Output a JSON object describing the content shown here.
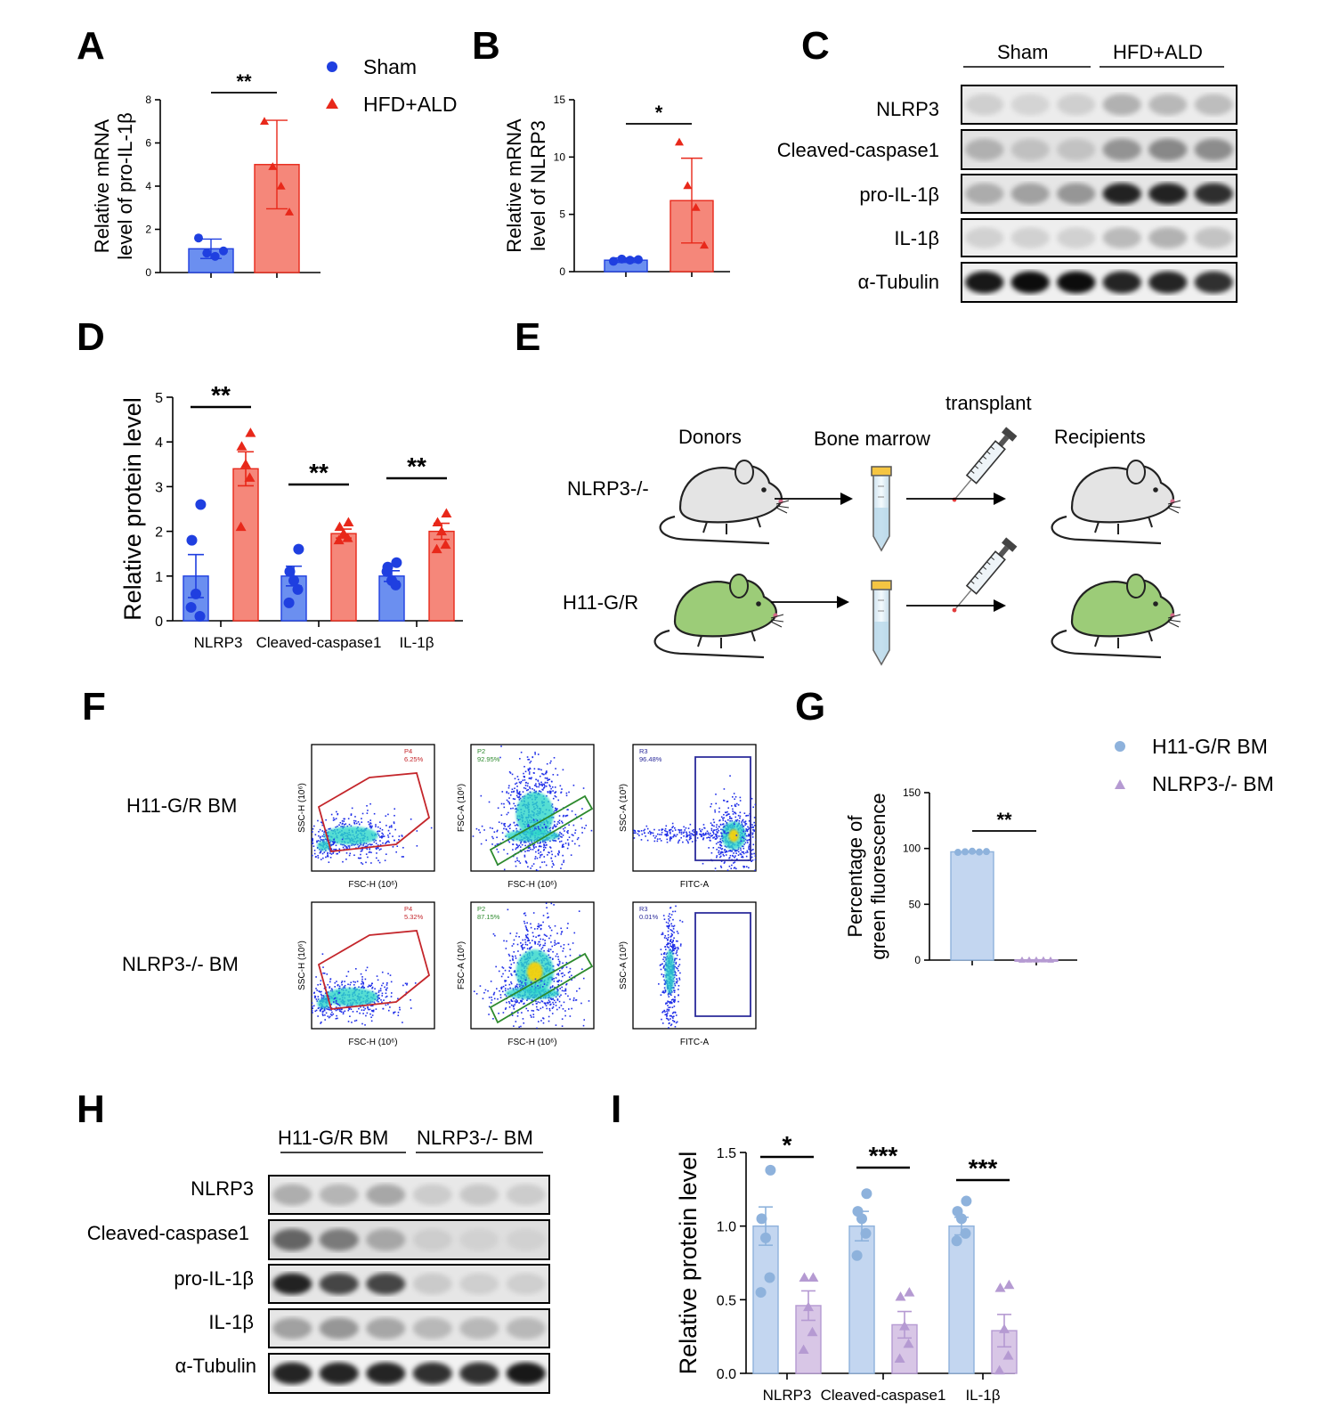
{
  "panels": {
    "A": "A",
    "B": "B",
    "C": "C",
    "D": "D",
    "E": "E",
    "F": "F",
    "G": "G",
    "H": "H",
    "I": "I"
  },
  "colors": {
    "sham_fill": "#6b8ff0",
    "sham_dot": "#1f3fe0",
    "hfd_fill": "#f5877a",
    "hfd_dot": "#e8281a",
    "h11_fill": "#c3d6f0",
    "h11_dot": "#8eb2dc",
    "nlrp_fill": "#d8c6e6",
    "nlrp_dot": "#b59ad2",
    "mouse_gray": "#e4e4e4",
    "mouse_green": "#9ccc78"
  },
  "legend_top": {
    "sham": "Sham",
    "hfd": "HFD+ALD"
  },
  "legend_g": {
    "h11": "H11-G/R BM",
    "nlrp": "NLRP3-/- BM"
  },
  "chart_data": [
    {
      "panel": "A",
      "type": "bar",
      "categories": [
        "Sham",
        "HFD+ALD"
      ],
      "ylabel_line1": "Relative mRNA",
      "ylabel_line2": "level of pro-IL-1β",
      "ylim": [
        0,
        8
      ],
      "yticks": [
        "0",
        "2",
        "4",
        "6",
        "8"
      ],
      "values": [
        1.1,
        5.0
      ],
      "errors": [
        0.45,
        2.05
      ],
      "points": [
        [
          1.6,
          0.9,
          0.75,
          1.0
        ],
        [
          7.0,
          4.9,
          4.0,
          2.8
        ]
      ],
      "significance": "**"
    },
    {
      "panel": "B",
      "type": "bar",
      "categories": [
        "Sham",
        "HFD+ALD"
      ],
      "ylabel_line1": "Relative mRNA",
      "ylabel_line2": "level of NLRP3",
      "ylim": [
        0,
        15
      ],
      "yticks": [
        "0",
        "5",
        "10",
        "15"
      ],
      "values": [
        1.0,
        6.2
      ],
      "errors": [
        0.2,
        3.7
      ],
      "points": [
        [
          0.9,
          1.1,
          1.0,
          1.05
        ],
        [
          11.3,
          7.5,
          5.6,
          2.3
        ]
      ],
      "significance": "*"
    },
    {
      "panel": "D",
      "type": "bar",
      "categories": [
        "NLRP3",
        "Cleaved-caspase1",
        "IL-1β"
      ],
      "ylabel": "Relative protein level",
      "ylim": [
        0,
        5
      ],
      "yticks": [
        "0",
        "1",
        "2",
        "3",
        "4",
        "5"
      ],
      "series": [
        {
          "name": "Sham",
          "values": [
            1.0,
            1.0,
            1.0
          ],
          "errors": [
            0.48,
            0.22,
            0.12
          ],
          "points": [
            [
              2.6,
              1.8,
              0.6,
              0.1,
              0.3
            ],
            [
              1.6,
              1.1,
              0.9,
              0.7,
              0.4
            ],
            [
              1.3,
              1.2,
              0.9,
              0.8,
              1.1
            ]
          ]
        },
        {
          "name": "HFD+ALD",
          "values": [
            3.4,
            1.95,
            2.0
          ],
          "errors": [
            0.38,
            0.1,
            0.18
          ],
          "points": [
            [
              4.2,
              3.9,
              3.5,
              3.2,
              2.1
            ],
            [
              2.2,
              2.1,
              1.95,
              1.85,
              1.8
            ],
            [
              2.4,
              2.2,
              2.0,
              1.7,
              1.6
            ]
          ]
        }
      ],
      "significance": [
        "**",
        "**",
        "**"
      ]
    },
    {
      "panel": "G",
      "type": "bar",
      "categories": [
        "H11-G/R BM",
        "NLRP3-/- BM"
      ],
      "ylabel_line1": "Percentage of",
      "ylabel_line2": "green fluorescence",
      "ylim": [
        0,
        150
      ],
      "yticks": [
        "0",
        "50",
        "100",
        "150"
      ],
      "values": [
        97,
        0.2
      ],
      "errors": [
        0.5,
        0.1
      ],
      "points": [
        [
          96.5,
          97,
          97.5,
          96.8,
          97.2
        ],
        [
          0.1,
          0.2,
          0.15,
          0.25,
          0.1
        ]
      ],
      "significance": "**"
    },
    {
      "panel": "I",
      "type": "bar",
      "categories": [
        "NLRP3",
        "Cleaved-caspase1",
        "IL-1β"
      ],
      "ylabel": "Relative protein level",
      "ylim": [
        0,
        1.5
      ],
      "yticks": [
        "0.0",
        "0.5",
        "1.0",
        "1.5"
      ],
      "series": [
        {
          "name": "H11-G/R BM",
          "values": [
            1.0,
            1.0,
            1.0
          ],
          "errors": [
            0.13,
            0.1,
            0.06
          ],
          "points": [
            [
              1.38,
              1.05,
              0.92,
              0.65,
              0.55
            ],
            [
              1.22,
              1.1,
              1.05,
              0.95,
              0.8
            ],
            [
              1.17,
              1.1,
              1.05,
              0.95,
              0.9
            ]
          ]
        },
        {
          "name": "NLRP3-/- BM",
          "values": [
            0.46,
            0.33,
            0.29
          ],
          "errors": [
            0.1,
            0.09,
            0.11
          ],
          "points": [
            [
              0.65,
              0.65,
              0.45,
              0.28,
              0.16
            ],
            [
              0.55,
              0.52,
              0.32,
              0.2,
              0.1
            ],
            [
              0.6,
              0.58,
              0.3,
              0.12,
              0.02
            ]
          ]
        }
      ],
      "significance": [
        "*",
        "***",
        "***"
      ]
    }
  ],
  "blot_c": {
    "group1": "Sham",
    "group2": "HFD+ALD",
    "rows": [
      "NLRP3",
      "Cleaved-caspase1",
      "pro-IL-1β",
      "IL-1β",
      "α-Tubulin"
    ]
  },
  "blot_h": {
    "group1": "H11-G/R BM",
    "group2": "NLRP3-/- BM",
    "rows": [
      "NLRP3",
      "Cleaved-caspase1",
      "pro-IL-1β",
      "IL-1β",
      "α-Tubulin"
    ]
  },
  "schematic": {
    "donors": "Donors",
    "bone_marrow": "Bone marrow",
    "transplant": "transplant",
    "recipients": "Recipients",
    "row1": "NLRP3-/-",
    "row2": "H11-G/R"
  },
  "flow": {
    "row1": "H11-G/R BM",
    "row2": "NLRP3-/- BM",
    "plot1_x": "FSC-H (10⁶)",
    "plot1_y": "SSC-H (10⁶)",
    "plot2_x": "FSC-H (10⁶)",
    "plot2_y": "FSC-A (10⁶)",
    "plot3_x": "FITC-A",
    "plot3_y": "SSC-A (10³)",
    "gates_row1": [
      {
        "name": "P4",
        "pct": "6.25%"
      },
      {
        "name": "P2",
        "pct": "92.95%"
      },
      {
        "name": "R3",
        "pct": "96.48%"
      }
    ],
    "gates_row2": [
      {
        "name": "P4",
        "pct": "5.32%"
      },
      {
        "name": "P2",
        "pct": "87.15%"
      },
      {
        "name": "R3",
        "pct": "0.01%"
      }
    ]
  }
}
